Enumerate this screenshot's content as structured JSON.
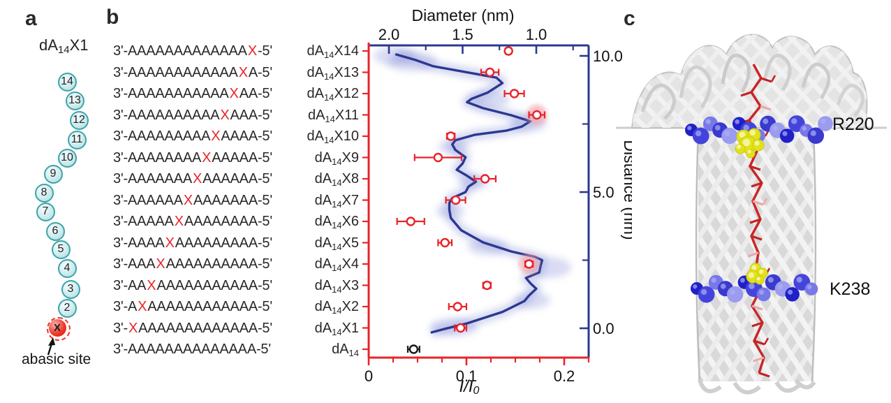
{
  "panels": {
    "a": {
      "label": "a",
      "title": {
        "pre": "dA",
        "sub": "14",
        "post": "X1"
      },
      "beads": [
        "14",
        "13",
        "12",
        "11",
        "10",
        "9",
        "8",
        "7",
        "6",
        "5",
        "4",
        "3",
        "2"
      ],
      "x_bead": "X",
      "annotation": "abasic site"
    },
    "b": {
      "label": "b",
      "rows": [
        {
          "pre": "3'-AAAAAAAAAAAAA",
          "x": "X",
          "post": "-5'",
          "label": {
            "pre": "dA",
            "sub": "14",
            "post": "X14"
          }
        },
        {
          "pre": "3'-AAAAAAAAAAAA",
          "x": "X",
          "post": "A-5'",
          "label": {
            "pre": "dA",
            "sub": "14",
            "post": "X13"
          }
        },
        {
          "pre": "3'-AAAAAAAAAAA",
          "x": "X",
          "post": "AA-5'",
          "label": {
            "pre": "dA",
            "sub": "14",
            "post": "X12"
          }
        },
        {
          "pre": "3'-AAAAAAAAAA",
          "x": "X",
          "post": "AAA-5'",
          "label": {
            "pre": "dA",
            "sub": "14",
            "post": "X11"
          }
        },
        {
          "pre": "3'-AAAAAAAAA",
          "x": "X",
          "post": "AAAA-5'",
          "label": {
            "pre": "dA",
            "sub": "14",
            "post": "X10"
          }
        },
        {
          "pre": "3'-AAAAAAAA",
          "x": "X",
          "post": "AAAAA-5'",
          "label": {
            "pre": "dA",
            "sub": "14",
            "post": "X9"
          }
        },
        {
          "pre": "3'-AAAAAAA",
          "x": "X",
          "post": "AAAAAA-5'",
          "label": {
            "pre": "dA",
            "sub": "14",
            "post": "X8"
          }
        },
        {
          "pre": "3'-AAAAAA",
          "x": "X",
          "post": "AAAAAAA-5'",
          "label": {
            "pre": "dA",
            "sub": "14",
            "post": "X7"
          }
        },
        {
          "pre": "3'-AAAAA",
          "x": "X",
          "post": "AAAAAAAA-5'",
          "label": {
            "pre": "dA",
            "sub": "14",
            "post": "X6"
          }
        },
        {
          "pre": "3'-AAAA",
          "x": "X",
          "post": "AAAAAAAAA-5'",
          "label": {
            "pre": "dA",
            "sub": "14",
            "post": "X5"
          }
        },
        {
          "pre": "3'-AAA",
          "x": "X",
          "post": "AAAAAAAAAA-5'",
          "label": {
            "pre": "dA",
            "sub": "14",
            "post": "X4"
          }
        },
        {
          "pre": "3'-AA",
          "x": "X",
          "post": "AAAAAAAAAAA-5'",
          "label": {
            "pre": "dA",
            "sub": "14",
            "post": "X3"
          }
        },
        {
          "pre": "3'-A",
          "x": "X",
          "post": "AAAAAAAAAAAA-5'",
          "label": {
            "pre": "dA",
            "sub": "14",
            "post": "X2"
          }
        },
        {
          "pre": "3'-",
          "x": "X",
          "post": "AAAAAAAAAAAAA-5'",
          "label": {
            "pre": "dA",
            "sub": "14",
            "post": "X1"
          }
        },
        {
          "pre": "3'-AAAAAAAAAAAAAA-5'",
          "x": "",
          "post": "",
          "label": {
            "pre": "dA",
            "sub": "14",
            "post": ""
          }
        }
      ]
    },
    "c": {
      "label": "c",
      "residue_top": "R220",
      "residue_bottom": "K238"
    }
  },
  "chart_data": {
    "type": "scatter+line",
    "axes": {
      "top": {
        "label": "Diameter (nm)",
        "tick_labels": [
          "2.0",
          "1.5",
          "1.0"
        ],
        "ticks": [
          2.0,
          1.5,
          1.0
        ],
        "minor_ticks": [
          1.75,
          1.25,
          0.75
        ],
        "range": [
          2.14,
          0.65
        ],
        "reversed": true
      },
      "bottom": {
        "label_main": "I/I",
        "label_sub": "0",
        "tick_labels": [
          "0",
          "0.1",
          "0.2"
        ],
        "ticks": [
          0,
          0.1,
          0.2
        ],
        "minor_step": 0.025,
        "range": [
          0,
          0.225
        ]
      },
      "right": {
        "label": "Distance (nm)",
        "tick_labels": [
          "10.0",
          "5.0",
          "0.0"
        ],
        "ticks": [
          10.0,
          5.0,
          0.0
        ],
        "minor_ticks": [
          7.5,
          2.5
        ],
        "range": [
          -1.1,
          10.3
        ]
      },
      "left": {
        "note": "one tick per oligo row, labeled by the sequence list"
      }
    },
    "red_points": [
      {
        "label": "dA14X14",
        "i_i0": 0.143,
        "err": 0.003,
        "distance_nm": 10.19,
        "color": "red",
        "highlight": false
      },
      {
        "label": "dA14X13",
        "i_i0": 0.124,
        "err": 0.009,
        "distance_nm": 9.41,
        "color": "red",
        "highlight": false
      },
      {
        "label": "dA14X12",
        "i_i0": 0.149,
        "err": 0.01,
        "distance_nm": 8.63,
        "color": "red",
        "highlight": false
      },
      {
        "label": "dA14X11",
        "i_i0": 0.172,
        "err": 0.008,
        "distance_nm": 7.85,
        "color": "red",
        "highlight": true
      },
      {
        "label": "dA14X10",
        "i_i0": 0.084,
        "err": 0.004,
        "distance_nm": 7.06,
        "color": "red",
        "highlight": false
      },
      {
        "label": "dA14X9",
        "i_i0": 0.071,
        "err": 0.024,
        "distance_nm": 6.28,
        "color": "red",
        "highlight": false
      },
      {
        "label": "dA14X8",
        "i_i0": 0.119,
        "err": 0.011,
        "distance_nm": 5.5,
        "color": "red",
        "highlight": false
      },
      {
        "label": "dA14X7",
        "i_i0": 0.089,
        "err": 0.01,
        "distance_nm": 4.71,
        "color": "red",
        "highlight": false
      },
      {
        "label": "dA14X6",
        "i_i0": 0.043,
        "err": 0.014,
        "distance_nm": 3.93,
        "color": "red",
        "highlight": false
      },
      {
        "label": "dA14X5",
        "i_i0": 0.078,
        "err": 0.007,
        "distance_nm": 3.14,
        "color": "red",
        "highlight": false
      },
      {
        "label": "dA14X4",
        "i_i0": 0.164,
        "err": 0.004,
        "distance_nm": 2.36,
        "color": "red",
        "highlight": true
      },
      {
        "label": "dA14X3",
        "i_i0": 0.121,
        "err": 0.004,
        "distance_nm": 1.57,
        "color": "red",
        "highlight": false
      },
      {
        "label": "dA14X2",
        "i_i0": 0.091,
        "err": 0.009,
        "distance_nm": 0.79,
        "color": "red",
        "highlight": false
      },
      {
        "label": "dA14X1",
        "i_i0": 0.094,
        "err": 0.006,
        "distance_nm": 0.0,
        "color": "red",
        "highlight": false
      },
      {
        "label": "dA14",
        "i_i0": 0.046,
        "err": 0.006,
        "distance_nm": -0.77,
        "color": "black",
        "highlight": false
      }
    ],
    "blue_curve_diameter_vs_distance": [
      [
        1.95,
        10.05
      ],
      [
        1.82,
        9.85
      ],
      [
        1.7,
        9.62
      ],
      [
        1.42,
        9.35
      ],
      [
        1.27,
        9.2
      ],
      [
        1.23,
        9.0
      ],
      [
        1.33,
        8.65
      ],
      [
        1.44,
        8.42
      ],
      [
        1.47,
        8.3
      ],
      [
        1.41,
        8.18
      ],
      [
        1.36,
        8.08
      ],
      [
        1.17,
        7.82
      ],
      [
        1.04,
        7.6
      ],
      [
        1.1,
        7.4
      ],
      [
        1.2,
        7.26
      ],
      [
        1.42,
        7.1
      ],
      [
        1.55,
        6.9
      ],
      [
        1.57,
        6.75
      ],
      [
        1.55,
        6.55
      ],
      [
        1.48,
        6.28
      ],
      [
        1.5,
        6.05
      ],
      [
        1.54,
        5.82
      ],
      [
        1.47,
        5.6
      ],
      [
        1.41,
        5.38
      ],
      [
        1.46,
        5.2
      ],
      [
        1.48,
        5.0
      ],
      [
        1.57,
        4.78
      ],
      [
        1.59,
        4.6
      ],
      [
        1.59,
        4.35
      ],
      [
        1.58,
        4.05
      ],
      [
        1.51,
        3.6
      ],
      [
        1.36,
        3.15
      ],
      [
        1.17,
        2.82
      ],
      [
        1.01,
        2.62
      ],
      [
        0.96,
        2.5
      ],
      [
        0.97,
        2.3
      ],
      [
        0.98,
        2.05
      ],
      [
        1.07,
        1.85
      ],
      [
        1.04,
        1.65
      ],
      [
        1.0,
        1.45
      ],
      [
        1.05,
        1.2
      ],
      [
        1.08,
        1.0
      ],
      [
        1.23,
        0.6
      ],
      [
        1.47,
        0.18
      ],
      [
        1.62,
        -0.02
      ],
      [
        1.71,
        -0.15
      ]
    ],
    "colors": {
      "curve_navy": "#2b3890",
      "glow_purple": "#8d96da",
      "axis_red": "#e8232a",
      "point_red": "#e8232a",
      "control_black": "#1a1a1a",
      "highlight_halo": "#f2a0a8",
      "bead_teal": "#3ba4aa",
      "abasic_red": "#ee3124"
    }
  }
}
